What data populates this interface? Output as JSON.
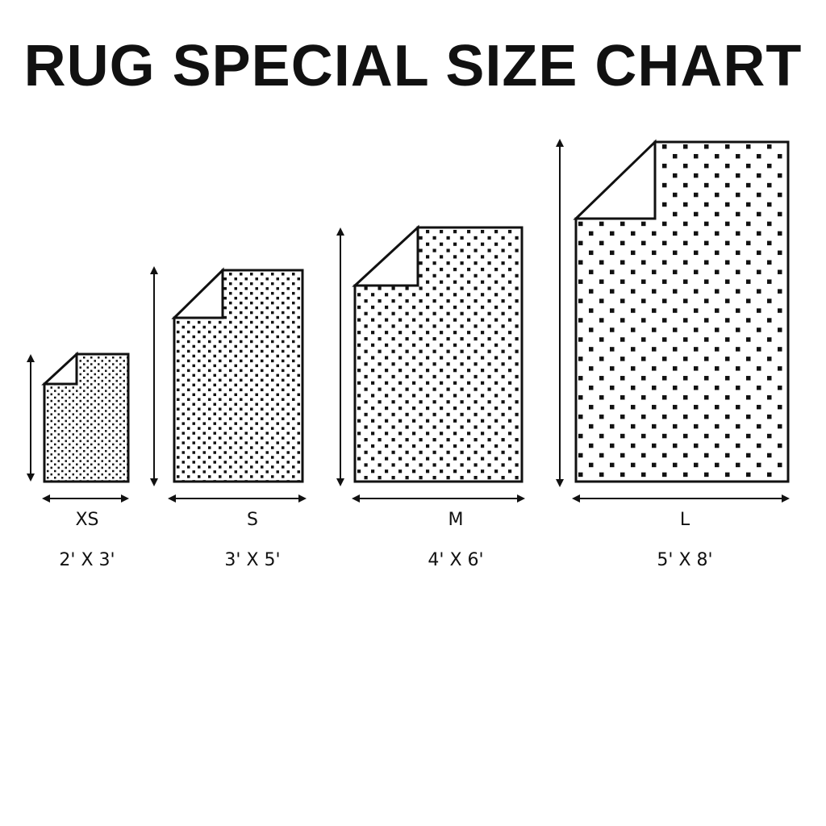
{
  "title": "RUG SPECIAL SIZE CHART",
  "colors": {
    "ink": "#111111",
    "background": "#ffffff"
  },
  "rugs": [
    {
      "size_label": "XS",
      "dimensions": "2' X 3'"
    },
    {
      "size_label": "S",
      "dimensions": "3' X 5'"
    },
    {
      "size_label": "M",
      "dimensions": "4' X 6'"
    },
    {
      "size_label": "L",
      "dimensions": "5' X 8'"
    }
  ]
}
